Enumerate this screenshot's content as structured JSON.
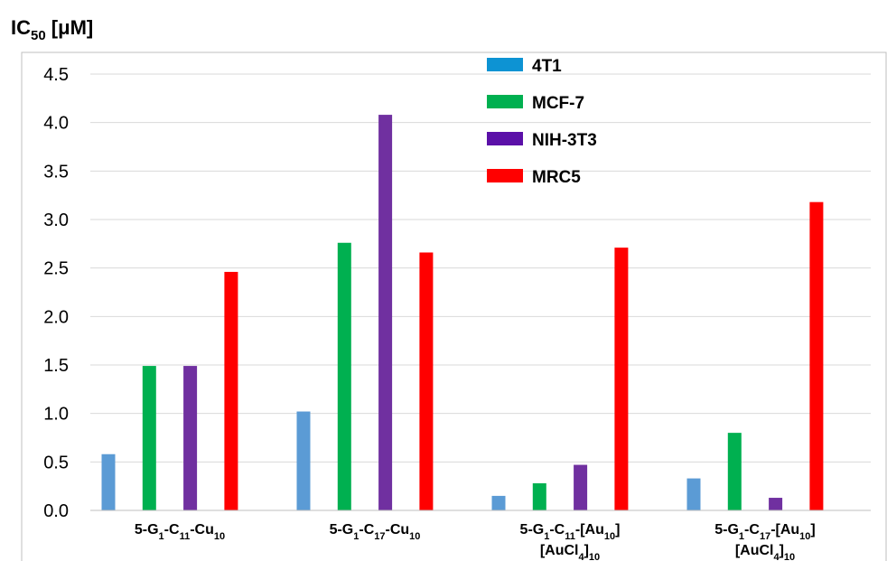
{
  "chart_data": {
    "type": "bar",
    "ylabel": {
      "main": "IC",
      "sub": "50",
      "unit": " [μM]"
    },
    "ylim": [
      0,
      4.5
    ],
    "yticks": [
      "0.0",
      "0.5",
      "1.0",
      "1.5",
      "2.0",
      "2.5",
      "3.0",
      "3.5",
      "4.0",
      "4.5"
    ],
    "grid": true,
    "legend_position": "top-center",
    "categories": [
      {
        "lines": [
          [
            [
              "5-G",
              ""
            ],
            [
              "1",
              "sub"
            ],
            [
              "-C",
              ""
            ],
            [
              "11",
              "sub"
            ],
            [
              "-Cu",
              ""
            ],
            [
              "10",
              "sub"
            ]
          ]
        ]
      },
      {
        "lines": [
          [
            [
              "5-G",
              ""
            ],
            [
              "1",
              "sub"
            ],
            [
              "-C",
              ""
            ],
            [
              "17",
              "sub"
            ],
            [
              "-Cu",
              ""
            ],
            [
              "10",
              "sub"
            ]
          ]
        ]
      },
      {
        "lines": [
          [
            [
              "5-G",
              ""
            ],
            [
              "1",
              "sub"
            ],
            [
              "-C",
              ""
            ],
            [
              "11",
              "sub"
            ],
            [
              "-[Au",
              ""
            ],
            [
              "10",
              "sub"
            ],
            [
              "]",
              ""
            ]
          ],
          [
            [
              "[AuCl",
              ""
            ],
            [
              "4",
              "sub"
            ],
            [
              "]",
              ""
            ],
            [
              "10",
              "sub"
            ]
          ]
        ]
      },
      {
        "lines": [
          [
            [
              "5-G",
              ""
            ],
            [
              "1",
              "sub"
            ],
            [
              "-C",
              ""
            ],
            [
              "17",
              "sub"
            ],
            [
              "-[Au",
              ""
            ],
            [
              "10",
              "sub"
            ],
            [
              "]",
              ""
            ]
          ],
          [
            [
              "[AuCl",
              ""
            ],
            [
              "4",
              "sub"
            ],
            [
              "]",
              ""
            ],
            [
              "10",
              "sub"
            ]
          ]
        ]
      }
    ],
    "series": [
      {
        "name": "4T1",
        "bar_color": "#5b9bd5",
        "legend_color": "#0d93d3",
        "values": [
          0.58,
          1.02,
          0.15,
          0.33
        ]
      },
      {
        "name": "MCF-7",
        "bar_color": "#00b050",
        "legend_color": "#00b050",
        "values": [
          1.49,
          2.76,
          0.28,
          0.8
        ]
      },
      {
        "name": "NIH-3T3",
        "bar_color": "#7030a0",
        "legend_color": "#5b10a8",
        "values": [
          1.49,
          4.08,
          0.47,
          0.13
        ]
      },
      {
        "name": "MRC5",
        "bar_color": "#ff0000",
        "legend_color": "#ff0000",
        "values": [
          2.46,
          2.66,
          2.71,
          3.18
        ]
      }
    ]
  }
}
